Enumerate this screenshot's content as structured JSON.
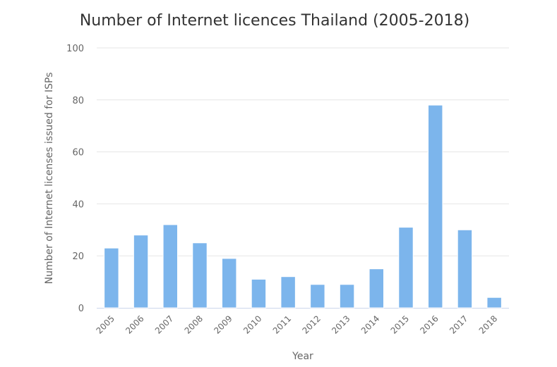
{
  "chart_data": {
    "type": "bar",
    "title": "Number of Internet licences Thailand (2005-2018)",
    "xlabel": "Year",
    "ylabel": "Number of Internet licenses issued for ISPs",
    "categories": [
      "2005",
      "2006",
      "2007",
      "2008",
      "2009",
      "2010",
      "2011",
      "2012",
      "2013",
      "2014",
      "2015",
      "2016",
      "2017",
      "2018"
    ],
    "values": [
      23,
      28,
      32,
      25,
      19,
      11,
      12,
      9,
      9,
      15,
      31,
      78,
      30,
      4
    ],
    "ylim": [
      0,
      100
    ],
    "yticks": [
      0,
      20,
      40,
      60,
      80,
      100
    ],
    "grid": true,
    "legend": "none",
    "bar_color": "#7cb5ec"
  }
}
